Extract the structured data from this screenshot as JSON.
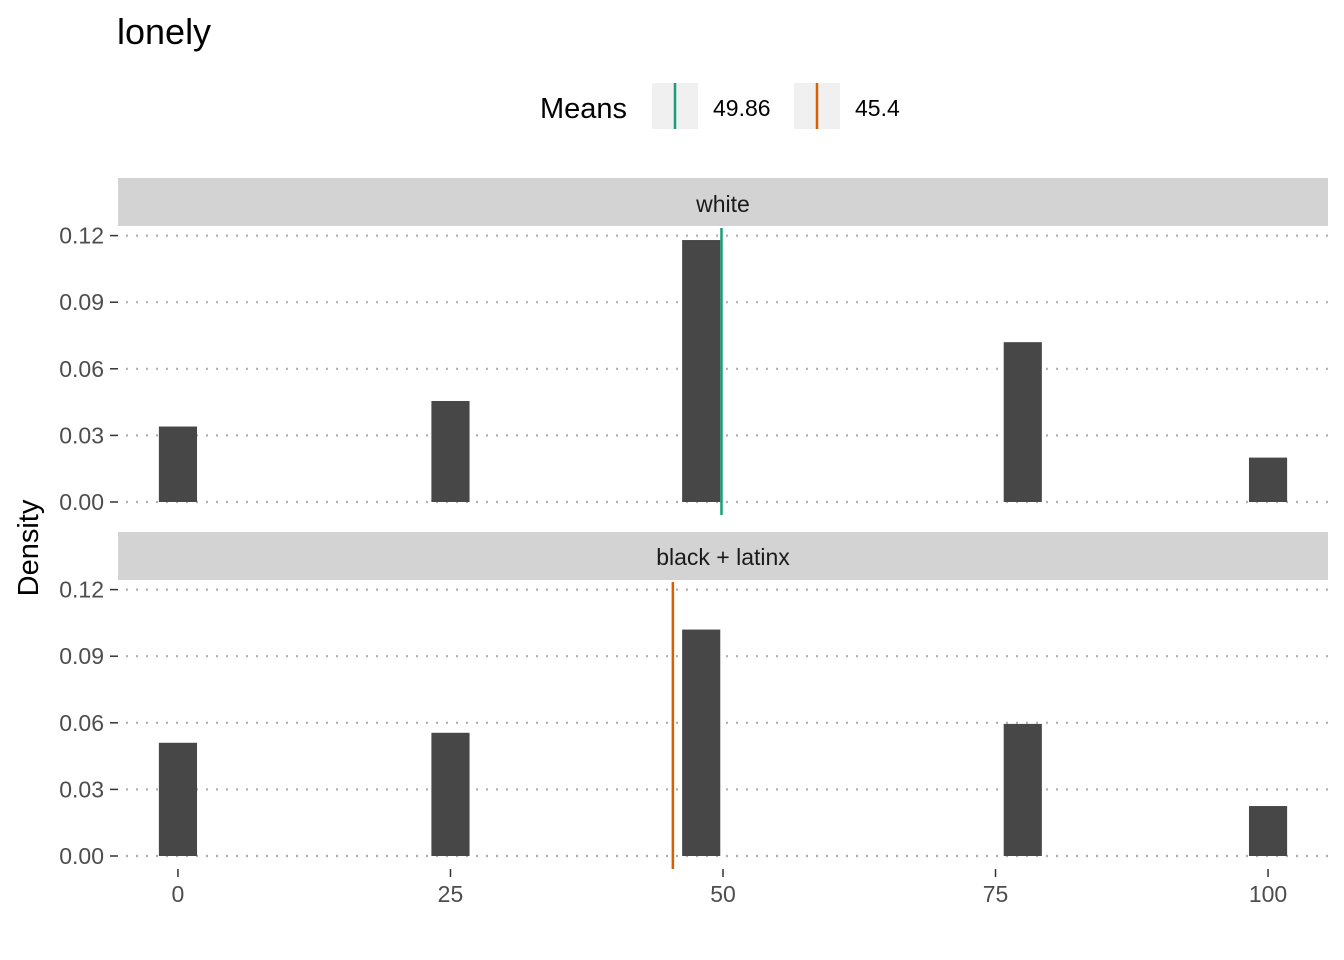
{
  "chart_data": {
    "type": "bar",
    "title": "lonely",
    "xlabel": "",
    "ylabel": "Density",
    "legend": {
      "title": "Means",
      "position": "top",
      "entries": [
        {
          "label": "49.86",
          "color": "#1b9e77"
        },
        {
          "label": "45.4",
          "color": "#d95f02"
        }
      ]
    },
    "xlim": [
      -5.5,
      105.5
    ],
    "ylim": [
      0,
      0.13
    ],
    "x_ticks": [
      "0",
      "25",
      "50",
      "75",
      "100"
    ],
    "x_tick_values": [
      0,
      25,
      50,
      75,
      100
    ],
    "y_ticks": [
      "0.00",
      "0.03",
      "0.06",
      "0.09",
      "0.12"
    ],
    "y_tick_values": [
      0,
      0.03,
      0.06,
      0.09,
      0.12
    ],
    "grid": "dotted horizontal",
    "bar_width": 3.5,
    "panels": [
      {
        "label": "white",
        "mean": 49.86,
        "mean_color": "#1b9e77",
        "bars": [
          {
            "x": 0,
            "value": 0.034
          },
          {
            "x": 25,
            "value": 0.0455
          },
          {
            "x": 48,
            "value": 0.118
          },
          {
            "x": 77.5,
            "value": 0.072
          },
          {
            "x": 100,
            "value": 0.02
          }
        ]
      },
      {
        "label": "black + latinx",
        "mean": 45.4,
        "mean_color": "#d95f02",
        "bars": [
          {
            "x": 0,
            "value": 0.051
          },
          {
            "x": 25,
            "value": 0.0555
          },
          {
            "x": 48,
            "value": 0.102
          },
          {
            "x": 77.5,
            "value": 0.0595
          },
          {
            "x": 100,
            "value": 0.0225
          }
        ]
      }
    ]
  }
}
